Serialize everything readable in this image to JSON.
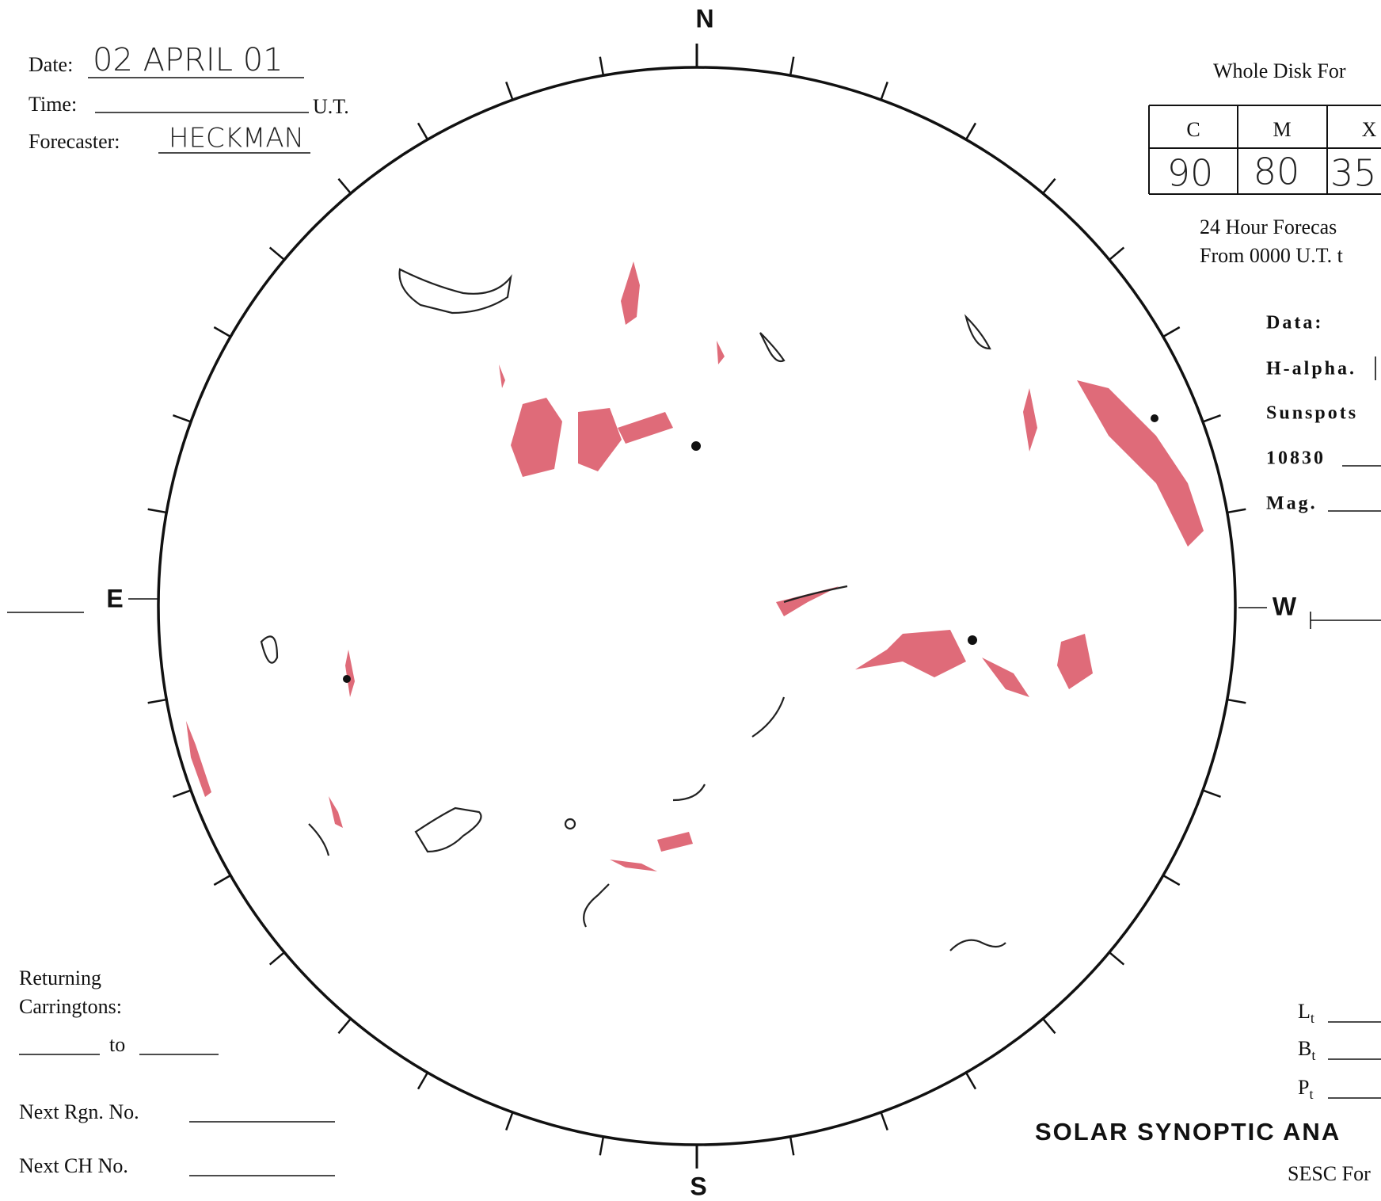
{
  "header": {
    "date_label": "Date:",
    "date_value": "02 APRIL 01",
    "time_label": "Time:",
    "time_unit": "U.T.",
    "forecaster_label": "Forecaster:",
    "forecaster_value": "HECKMAN"
  },
  "compass": {
    "north": "N",
    "south": "S",
    "east": "E",
    "west": "W"
  },
  "forecast": {
    "title": "Whole Disk For",
    "table": {
      "headers": [
        "C",
        "M",
        "X"
      ],
      "values": [
        "90",
        "80",
        "35"
      ]
    },
    "period_line1": "24 Hour Forecas",
    "period_line2": "From 0000 U.T. t"
  },
  "data_section": {
    "title": "Data:",
    "items": [
      "H-alpha.",
      "Sunspots",
      "10830",
      "Mag."
    ]
  },
  "carringtons": {
    "line1": "Returning",
    "line2": "Carringtons:",
    "to": "to"
  },
  "next_fields": [
    "Next Rgn. No.",
    "Next CH No."
  ],
  "coords": [
    {
      "letter": "L",
      "sub": "t"
    },
    {
      "letter": "B",
      "sub": "t"
    },
    {
      "letter": "P",
      "sub": "t"
    }
  ],
  "footer": {
    "title": "SOLAR SYNOPTIC ANA",
    "form": "SESC For"
  }
}
